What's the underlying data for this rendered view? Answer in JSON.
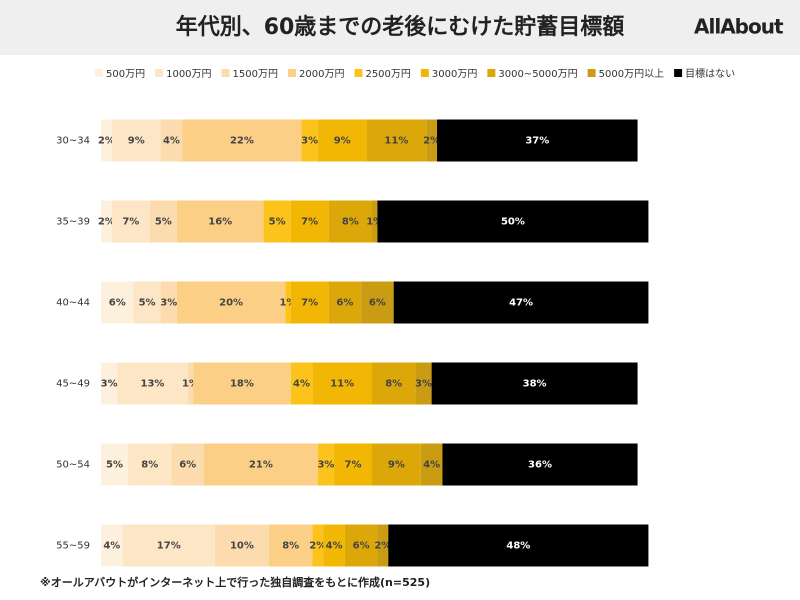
{
  "header": {
    "logo": "AllAbout"
  },
  "footnote": "※オールアバウトがインターネット上で行った独自調査をもとに作成(n=525)",
  "chart_data": {
    "type": "bar",
    "orientation": "horizontal",
    "stacked": true,
    "title": "年代別、60歳までの老後にむけた貯蓄目標額",
    "categories": [
      "30~34",
      "35~39",
      "40~44",
      "45~49",
      "50~54",
      "55~59"
    ],
    "xlim": [
      0,
      100
    ],
    "legend": "top",
    "series": [
      {
        "name": "500万円",
        "color": "#fdf0dd",
        "values": [
          2,
          2,
          6,
          3,
          5,
          4
        ],
        "value_labels": [
          "2%",
          "2%",
          "6%",
          "3%",
          "5%",
          "4%"
        ]
      },
      {
        "name": "1000万円",
        "color": "#fde6c6",
        "values": [
          9,
          7,
          5,
          13,
          8,
          17
        ],
        "value_labels": [
          "9%",
          "7%",
          "5%",
          "13%",
          "8%",
          "17%"
        ]
      },
      {
        "name": "1500万円",
        "color": "#fcdcae",
        "values": [
          4,
          5,
          3,
          1,
          6,
          10
        ],
        "value_labels": [
          "4%",
          "5%",
          "3%",
          "1%",
          "6%",
          "10%"
        ]
      },
      {
        "name": "2000万円",
        "color": "#fbcf86",
        "values": [
          22,
          16,
          20,
          18,
          21,
          8
        ],
        "value_labels": [
          "22%",
          "16%",
          "20%",
          "18%",
          "21%",
          "8%"
        ]
      },
      {
        "name": "2500万円",
        "color": "#fbc31b",
        "values": [
          3,
          5,
          1,
          4,
          3,
          2
        ],
        "value_labels": [
          "3%",
          "5%",
          "1%",
          "4%",
          "3%",
          "2%"
        ]
      },
      {
        "name": "3000万円",
        "color": "#f2b705",
        "values": [
          9,
          7,
          7,
          11,
          7,
          4
        ],
        "value_labels": [
          "9%",
          "7%",
          "7%",
          "11%",
          "7%",
          "4%"
        ]
      },
      {
        "name": "3000~5000万円",
        "color": "#dca809",
        "values": [
          11,
          8,
          6,
          8,
          9,
          6
        ],
        "value_labels": [
          "11%",
          "8%",
          "6%",
          "8%",
          "9%",
          "6%"
        ]
      },
      {
        "name": "5000万円以上",
        "color": "#c99c14",
        "values": [
          2,
          1,
          6,
          3,
          4,
          2
        ],
        "value_labels": [
          "2%",
          "1%",
          "6%",
          "3%",
          "4%",
          "2%"
        ]
      },
      {
        "name": "目標はない",
        "color": "#000000",
        "values": [
          37,
          50,
          47,
          38,
          36,
          48
        ],
        "value_labels": [
          "37%",
          "50%",
          "47%",
          "38%",
          "36%",
          "48%"
        ]
      }
    ]
  }
}
